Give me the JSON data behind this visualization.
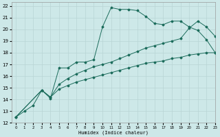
{
  "xlabel": "Humidex (Indice chaleur)",
  "xlim": [
    -0.5,
    23
  ],
  "ylim": [
    12,
    22.3
  ],
  "xticks": [
    0,
    1,
    2,
    3,
    4,
    5,
    6,
    7,
    8,
    9,
    10,
    11,
    12,
    13,
    14,
    15,
    16,
    17,
    18,
    19,
    20,
    21,
    22,
    23
  ],
  "yticks": [
    12,
    13,
    14,
    15,
    16,
    17,
    18,
    19,
    20,
    21,
    22
  ],
  "bg_color": "#cde8e8",
  "grid_color": "#b8d4d4",
  "line_color": "#1a6b5a",
  "line1_x": [
    0,
    1,
    2,
    3,
    4,
    5,
    6,
    7,
    8,
    9,
    10,
    11,
    12,
    13,
    14,
    15,
    16,
    17,
    18,
    19,
    20,
    21,
    22,
    23
  ],
  "line1_y": [
    12.5,
    13.0,
    13.5,
    14.8,
    14.1,
    16.7,
    16.7,
    17.2,
    17.2,
    17.4,
    20.2,
    21.85,
    21.7,
    21.7,
    21.6,
    21.1,
    20.5,
    20.4,
    20.7,
    20.7,
    20.2,
    19.9,
    19.1,
    18.0
  ],
  "line2_x": [
    0,
    3,
    4,
    5,
    6,
    7,
    8,
    9,
    10,
    11,
    12,
    13,
    14,
    15,
    16,
    17,
    18,
    19,
    20,
    21,
    22,
    23
  ],
  "line2_y": [
    12.5,
    14.8,
    14.2,
    15.3,
    15.8,
    16.2,
    16.5,
    16.8,
    17.0,
    17.2,
    17.5,
    17.8,
    18.1,
    18.4,
    18.6,
    18.8,
    19.0,
    19.2,
    20.1,
    20.7,
    20.2,
    19.4
  ],
  "line3_x": [
    0,
    3,
    4,
    5,
    6,
    7,
    8,
    9,
    10,
    11,
    12,
    13,
    14,
    15,
    16,
    17,
    18,
    19,
    20,
    21,
    22,
    23
  ],
  "line3_y": [
    12.5,
    14.8,
    14.2,
    14.9,
    15.2,
    15.5,
    15.7,
    15.9,
    16.1,
    16.3,
    16.5,
    16.7,
    16.9,
    17.1,
    17.2,
    17.3,
    17.5,
    17.6,
    17.8,
    17.9,
    18.0,
    18.0
  ]
}
